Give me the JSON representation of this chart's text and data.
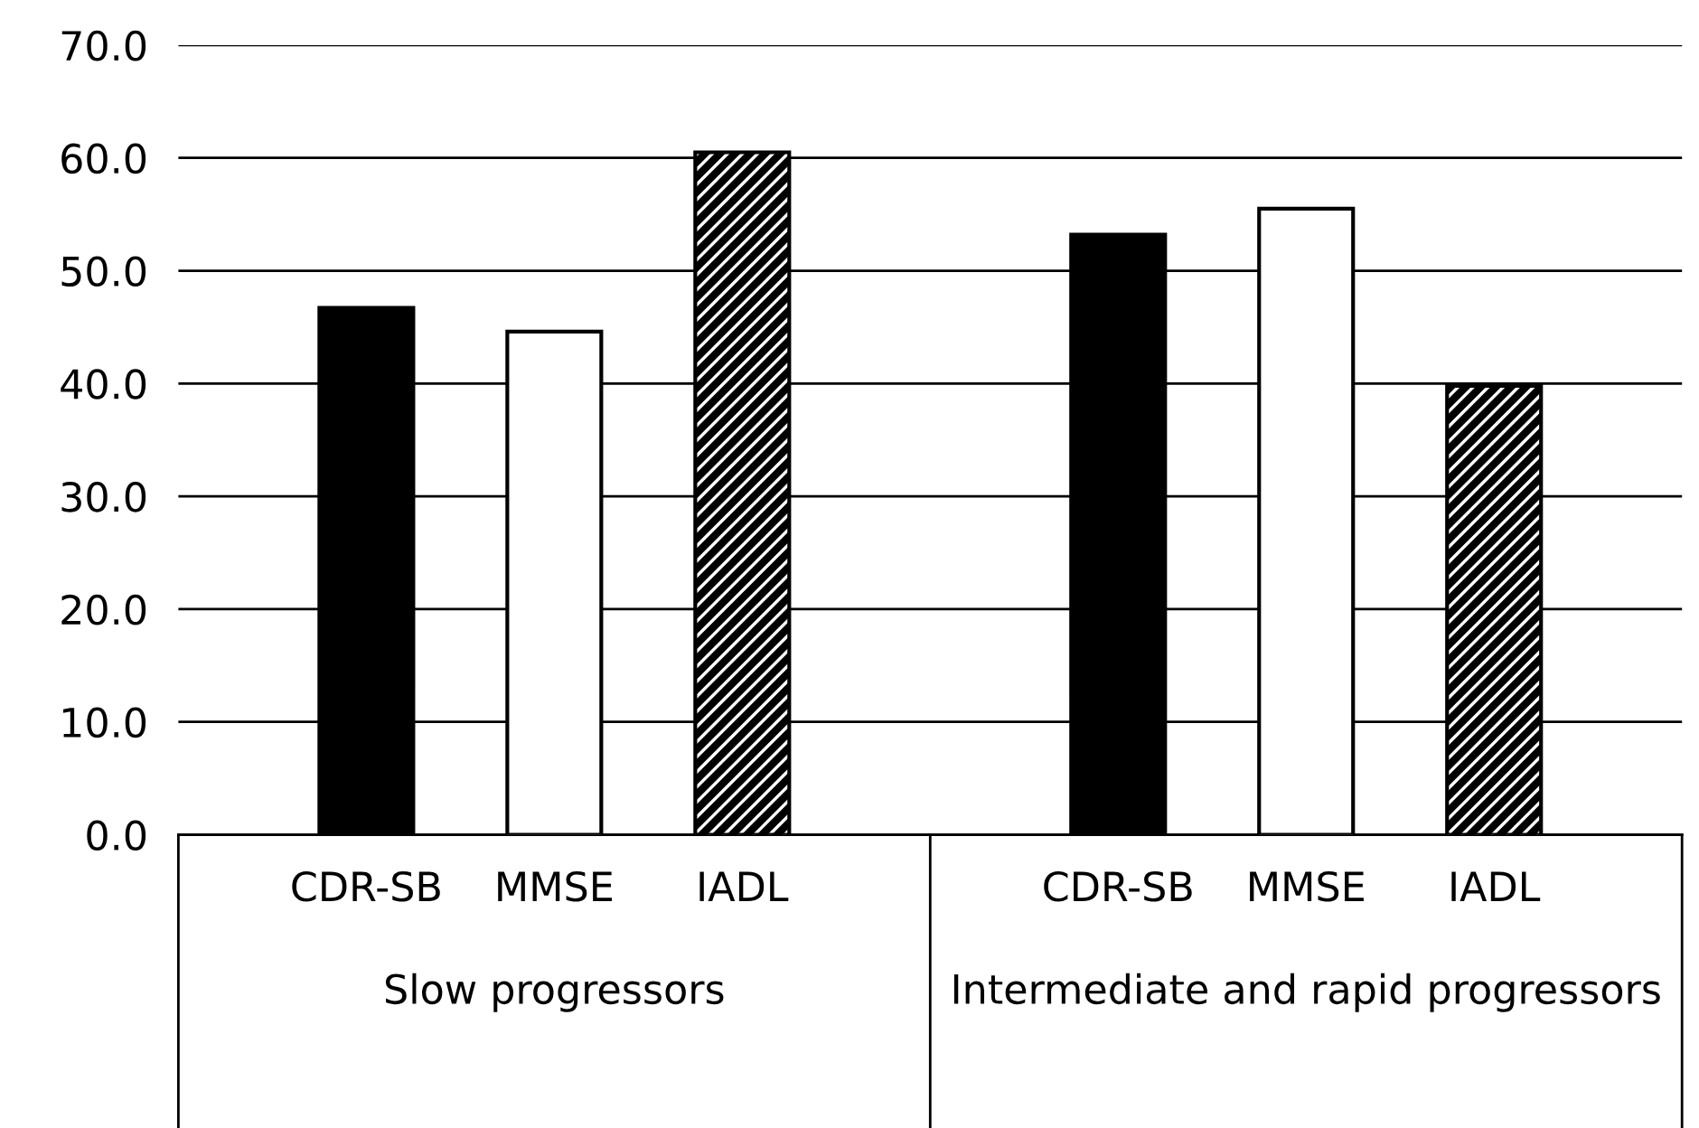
{
  "chart_data": {
    "type": "bar",
    "categories": [
      "Slow progressors",
      "Intermediate and rapid progressors"
    ],
    "series": [
      {
        "name": "CDR-SB",
        "color": "#000000",
        "values": [
          46.7,
          53.2
        ]
      },
      {
        "name": "MMSE",
        "color": "#ffffff",
        "values": [
          44.6,
          55.5
        ]
      },
      {
        "name": "IADL",
        "color": "#000000",
        "values": [
          60.5,
          39.8
        ]
      }
    ],
    "ylim": [
      0,
      70
    ],
    "yticks": [
      {
        "value": 0,
        "label": "0.0"
      },
      {
        "value": 10,
        "label": "10.0"
      },
      {
        "value": 20,
        "label": "20.0"
      },
      {
        "value": 30,
        "label": "30.0"
      },
      {
        "value": 40,
        "label": "40.0"
      },
      {
        "value": 50,
        "label": "50.0"
      },
      {
        "value": 60,
        "label": "60.0"
      },
      {
        "value": 70,
        "label": "70.0"
      }
    ],
    "grid": "y",
    "legend": false
  }
}
